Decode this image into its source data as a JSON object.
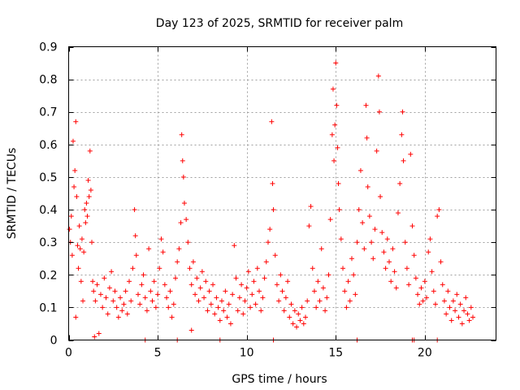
{
  "chart_data": {
    "type": "scatter",
    "title": "Day 123 of 2025, SRMTID for receiver palm",
    "xlabel": "GPS time / hours",
    "ylabel": "SRMTID / TECUs",
    "xlim": [
      0,
      24
    ],
    "ylim": [
      0,
      0.9
    ],
    "x_ticks": [
      0,
      5,
      10,
      15,
      20
    ],
    "x_tick_labels": [
      "0",
      "5",
      "10",
      "15",
      "20"
    ],
    "y_ticks": [
      0,
      0.1,
      0.2,
      0.3,
      0.4,
      0.5,
      0.6,
      0.7,
      0.8,
      0.9
    ],
    "y_tick_labels": [
      "0",
      "0.1",
      "0.2",
      "0.3",
      "0.4",
      "0.5",
      "0.6",
      "0.7",
      "0.8",
      "0.9"
    ],
    "grid": true,
    "marker": "+",
    "color": "#ff0000",
    "series": [
      {
        "name": "SRMTID",
        "points": [
          [
            0.05,
            0.34
          ],
          [
            0.1,
            0.3
          ],
          [
            0.15,
            0.38
          ],
          [
            0.2,
            0.26
          ],
          [
            0.25,
            0.61
          ],
          [
            0.3,
            0.47
          ],
          [
            0.35,
            0.52
          ],
          [
            0.4,
            0.67
          ],
          [
            0.45,
            0.44
          ],
          [
            0.5,
            0.29
          ],
          [
            0.55,
            0.22
          ],
          [
            0.6,
            0.35
          ],
          [
            0.65,
            0.28
          ],
          [
            0.7,
            0.18
          ],
          [
            0.75,
            0.31
          ],
          [
            0.8,
            0.12
          ],
          [
            0.85,
            0.27
          ],
          [
            0.9,
            0.4
          ],
          [
            0.95,
            0.36
          ],
          [
            1.0,
            0.42
          ],
          [
            1.05,
            0.38
          ],
          [
            1.1,
            0.49
          ],
          [
            1.15,
            0.44
          ],
          [
            1.2,
            0.58
          ],
          [
            1.25,
            0.46
          ],
          [
            1.3,
            0.3
          ],
          [
            1.35,
            0.18
          ],
          [
            1.4,
            0.15
          ],
          [
            1.45,
            0.01
          ],
          [
            1.5,
            0.12
          ],
          [
            1.6,
            0.17
          ],
          [
            1.7,
            0.02
          ],
          [
            1.8,
            0.14
          ],
          [
            1.9,
            0.1
          ],
          [
            2.0,
            0.19
          ],
          [
            2.1,
            0.13
          ],
          [
            2.2,
            0.08
          ],
          [
            2.3,
            0.16
          ],
          [
            2.4,
            0.21
          ],
          [
            2.5,
            0.12
          ],
          [
            2.6,
            0.15
          ],
          [
            2.7,
            0.1
          ],
          [
            2.8,
            0.07
          ],
          [
            2.9,
            0.13
          ],
          [
            3.0,
            0.09
          ],
          [
            3.1,
            0.11
          ],
          [
            3.2,
            0.15
          ],
          [
            3.3,
            0.08
          ],
          [
            3.4,
            0.18
          ],
          [
            3.5,
            0.12
          ],
          [
            3.6,
            0.22
          ],
          [
            3.7,
            0.4
          ],
          [
            3.75,
            0.32
          ],
          [
            3.8,
            0.26
          ],
          [
            3.9,
            0.14
          ],
          [
            4.0,
            0.11
          ],
          [
            4.1,
            0.17
          ],
          [
            4.2,
            0.2
          ],
          [
            4.3,
            0.13
          ],
          [
            4.4,
            0.09
          ],
          [
            4.5,
            0.28
          ],
          [
            4.6,
            0.15
          ],
          [
            4.7,
            0.12
          ],
          [
            4.8,
            0.18
          ],
          [
            4.9,
            0.1
          ],
          [
            5.0,
            0.14
          ],
          [
            5.1,
            0.22
          ],
          [
            5.2,
            0.31
          ],
          [
            5.3,
            0.27
          ],
          [
            5.4,
            0.17
          ],
          [
            5.5,
            0.13
          ],
          [
            5.6,
            0.1
          ],
          [
            5.7,
            0.15
          ],
          [
            5.8,
            0.07
          ],
          [
            5.9,
            0.11
          ],
          [
            6.0,
            0.19
          ],
          [
            6.1,
            0.24
          ],
          [
            6.2,
            0.28
          ],
          [
            6.3,
            0.36
          ],
          [
            6.35,
            0.63
          ],
          [
            6.4,
            0.55
          ],
          [
            6.45,
            0.5
          ],
          [
            6.5,
            0.42
          ],
          [
            6.6,
            0.37
          ],
          [
            6.7,
            0.3
          ],
          [
            6.8,
            0.22
          ],
          [
            6.9,
            0.17
          ],
          [
            7.0,
            0.24
          ],
          [
            7.1,
            0.14
          ],
          [
            7.2,
            0.19
          ],
          [
            7.3,
            0.12
          ],
          [
            7.4,
            0.16
          ],
          [
            7.5,
            0.21
          ],
          [
            7.6,
            0.13
          ],
          [
            7.7,
            0.18
          ],
          [
            7.8,
            0.09
          ],
          [
            7.9,
            0.15
          ],
          [
            8.0,
            0.11
          ],
          [
            8.1,
            0.17
          ],
          [
            8.2,
            0.08
          ],
          [
            8.3,
            0.13
          ],
          [
            8.4,
            0.1
          ],
          [
            8.5,
            0.06
          ],
          [
            8.6,
            0.12
          ],
          [
            8.7,
            0.09
          ],
          [
            8.8,
            0.15
          ],
          [
            8.9,
            0.07
          ],
          [
            9.0,
            0.11
          ],
          [
            9.1,
            0.05
          ],
          [
            9.2,
            0.14
          ],
          [
            9.3,
            0.29
          ],
          [
            9.4,
            0.19
          ],
          [
            9.5,
            0.09
          ],
          [
            9.6,
            0.13
          ],
          [
            9.7,
            0.17
          ],
          [
            9.8,
            0.08
          ],
          [
            9.9,
            0.12
          ],
          [
            10.0,
            0.16
          ],
          [
            10.1,
            0.21
          ],
          [
            10.2,
            0.1
          ],
          [
            10.3,
            0.14
          ],
          [
            10.4,
            0.18
          ],
          [
            10.5,
            0.11
          ],
          [
            10.6,
            0.22
          ],
          [
            10.7,
            0.15
          ],
          [
            10.8,
            0.09
          ],
          [
            10.9,
            0.13
          ],
          [
            11.0,
            0.19
          ],
          [
            11.1,
            0.24
          ],
          [
            11.2,
            0.3
          ],
          [
            11.3,
            0.34
          ],
          [
            11.4,
            0.67
          ],
          [
            11.45,
            0.48
          ],
          [
            11.5,
            0.4
          ],
          [
            11.6,
            0.26
          ],
          [
            11.7,
            0.17
          ],
          [
            11.8,
            0.12
          ],
          [
            11.9,
            0.2
          ],
          [
            12.0,
            0.15
          ],
          [
            12.1,
            0.09
          ],
          [
            12.2,
            0.13
          ],
          [
            12.3,
            0.18
          ],
          [
            12.4,
            0.07
          ],
          [
            12.5,
            0.11
          ],
          [
            12.6,
            0.05
          ],
          [
            12.7,
            0.09
          ],
          [
            12.8,
            0.04
          ],
          [
            12.9,
            0.08
          ],
          [
            13.0,
            0.06
          ],
          [
            13.1,
            0.1
          ],
          [
            13.2,
            0.05
          ],
          [
            13.3,
            0.07
          ],
          [
            13.4,
            0.12
          ],
          [
            13.5,
            0.35
          ],
          [
            13.6,
            0.41
          ],
          [
            13.7,
            0.22
          ],
          [
            13.8,
            0.15
          ],
          [
            13.9,
            0.1
          ],
          [
            14.0,
            0.18
          ],
          [
            14.1,
            0.12
          ],
          [
            14.2,
            0.28
          ],
          [
            14.3,
            0.16
          ],
          [
            14.4,
            0.09
          ],
          [
            14.5,
            0.13
          ],
          [
            14.6,
            0.2
          ],
          [
            14.7,
            0.37
          ],
          [
            14.8,
            0.63
          ],
          [
            14.85,
            0.77
          ],
          [
            14.9,
            0.55
          ],
          [
            14.95,
            0.66
          ],
          [
            15.0,
            0.85
          ],
          [
            15.05,
            0.72
          ],
          [
            15.1,
            0.59
          ],
          [
            15.15,
            0.48
          ],
          [
            15.2,
            0.4
          ],
          [
            15.3,
            0.31
          ],
          [
            15.4,
            0.22
          ],
          [
            15.5,
            0.15
          ],
          [
            15.6,
            0.1
          ],
          [
            15.7,
            0.18
          ],
          [
            15.8,
            0.12
          ],
          [
            15.9,
            0.25
          ],
          [
            16.0,
            0.2
          ],
          [
            16.1,
            0.14
          ],
          [
            16.2,
            0.3
          ],
          [
            16.3,
            0.4
          ],
          [
            16.4,
            0.52
          ],
          [
            16.5,
            0.36
          ],
          [
            16.6,
            0.28
          ],
          [
            16.7,
            0.72
          ],
          [
            16.75,
            0.62
          ],
          [
            16.8,
            0.47
          ],
          [
            16.9,
            0.38
          ],
          [
            17.0,
            0.3
          ],
          [
            17.1,
            0.25
          ],
          [
            17.2,
            0.34
          ],
          [
            17.3,
            0.58
          ],
          [
            17.4,
            0.81
          ],
          [
            17.45,
            0.7
          ],
          [
            17.5,
            0.44
          ],
          [
            17.6,
            0.33
          ],
          [
            17.7,
            0.27
          ],
          [
            17.8,
            0.22
          ],
          [
            17.9,
            0.31
          ],
          [
            18.0,
            0.24
          ],
          [
            18.1,
            0.18
          ],
          [
            18.2,
            0.28
          ],
          [
            18.3,
            0.21
          ],
          [
            18.4,
            0.16
          ],
          [
            18.5,
            0.39
          ],
          [
            18.6,
            0.48
          ],
          [
            18.7,
            0.63
          ],
          [
            18.75,
            0.7
          ],
          [
            18.8,
            0.55
          ],
          [
            18.9,
            0.3
          ],
          [
            19.0,
            0.22
          ],
          [
            19.1,
            0.17
          ],
          [
            19.2,
            0.57
          ],
          [
            19.3,
            0.35
          ],
          [
            19.4,
            0.26
          ],
          [
            19.5,
            0.19
          ],
          [
            19.6,
            0.14
          ],
          [
            19.7,
            0.11
          ],
          [
            19.8,
            0.16
          ],
          [
            19.9,
            0.12
          ],
          [
            20.0,
            0.18
          ],
          [
            20.1,
            0.13
          ],
          [
            20.2,
            0.27
          ],
          [
            20.3,
            0.31
          ],
          [
            20.4,
            0.21
          ],
          [
            20.5,
            0.15
          ],
          [
            20.6,
            0.11
          ],
          [
            20.7,
            0.38
          ],
          [
            20.8,
            0.4
          ],
          [
            20.9,
            0.24
          ],
          [
            21.0,
            0.17
          ],
          [
            21.1,
            0.12
          ],
          [
            21.2,
            0.08
          ],
          [
            21.3,
            0.15
          ],
          [
            21.4,
            0.1
          ],
          [
            21.5,
            0.06
          ],
          [
            21.6,
            0.12
          ],
          [
            21.7,
            0.09
          ],
          [
            21.8,
            0.14
          ],
          [
            21.9,
            0.07
          ],
          [
            22.0,
            0.11
          ],
          [
            22.1,
            0.05
          ],
          [
            22.2,
            0.09
          ],
          [
            22.3,
            0.13
          ],
          [
            22.4,
            0.08
          ],
          [
            22.5,
            0.06
          ],
          [
            22.6,
            0.1
          ],
          [
            22.7,
            0.07
          ],
          [
            0.4,
            0.07
          ],
          [
            4.3,
            0.0
          ],
          [
            6.1,
            0.0
          ],
          [
            6.9,
            0.03
          ],
          [
            8.5,
            0.0
          ],
          [
            11.5,
            0.0
          ],
          [
            16.2,
            0.0
          ],
          [
            19.3,
            0.0
          ],
          [
            19.4,
            0.0
          ],
          [
            20.7,
            0.0
          ]
        ]
      }
    ]
  }
}
